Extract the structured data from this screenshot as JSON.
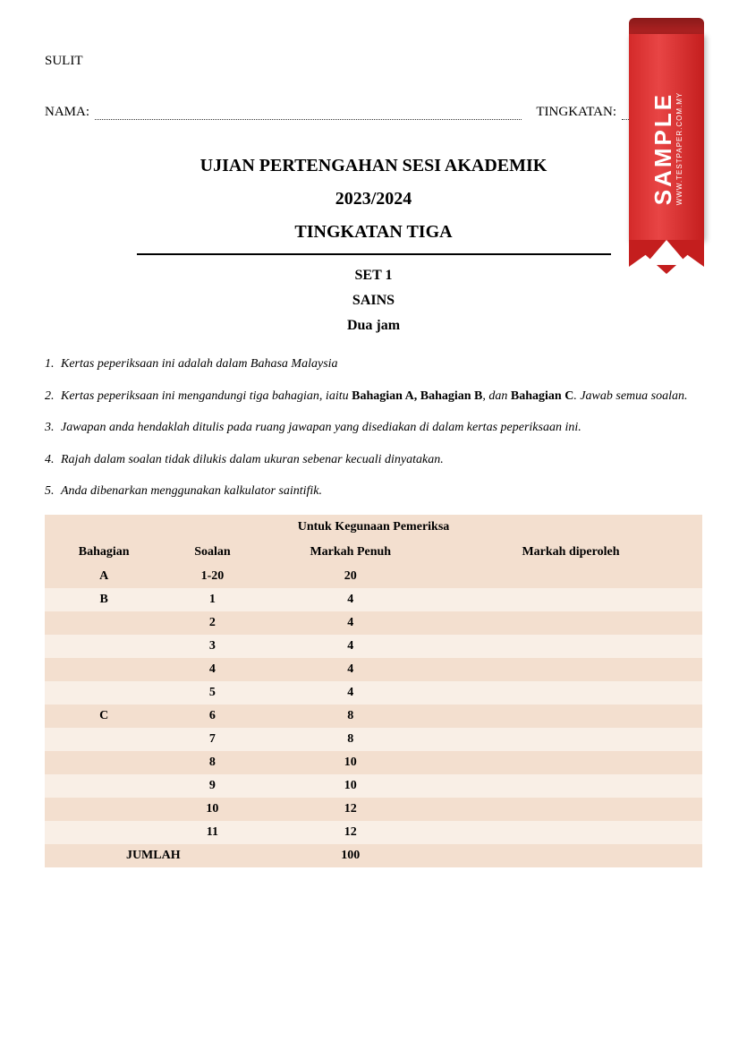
{
  "header": {
    "confidential": "SULIT",
    "name_label": "NAMA:",
    "tingkatan_label": "TINGKATAN:"
  },
  "titles": {
    "line1": "UJIAN PERTENGAHAN SESI AKADEMIK",
    "line2": "2023/2024",
    "line3": "TINGKATAN TIGA",
    "line4": "SET 1",
    "line5": "SAINS",
    "line6": "Dua jam"
  },
  "instructions": {
    "i1_num": "1.",
    "i1_text": "Kertas peperiksaan ini adalah dalam Bahasa Malaysia",
    "i2_num": "2.",
    "i2_pre": "Kertas peperiksaan ini mengandungi tiga bahagian, iaitu ",
    "i2_bold1": "Bahagian A, Bahagian B",
    "i2_mid": ", dan ",
    "i2_bold2": "Bahagian C",
    "i2_post": ". Jawab semua soalan.",
    "i3_num": "3.",
    "i3_text": "Jawapan anda hendaklah ditulis pada ruang jawapan yang disediakan di dalam kertas peperiksaan ini.",
    "i4_num": "4.",
    "i4_text": "Rajah dalam soalan tidak dilukis dalam ukuran sebenar kecuali dinyatakan.",
    "i5_num": "5.",
    "i5_text": "Anda dibenarkan menggunakan kalkulator saintifik."
  },
  "table": {
    "caption": "Untuk Kegunaan Pemeriksa",
    "headers": {
      "bahagian": "Bahagian",
      "soalan": "Soalan",
      "markah_penuh": "Markah Penuh",
      "markah_diperoleh": "Markah diperoleh"
    },
    "colors": {
      "odd_row": "#f3dfcf",
      "even_row": "#f9efe6",
      "header_bg": "#f3dfcf"
    },
    "rows": [
      {
        "bahagian": "A",
        "soalan": "1-20",
        "markah_penuh": "20",
        "row_class": "odd"
      },
      {
        "bahagian": "B",
        "soalan": "1",
        "markah_penuh": "4",
        "row_class": "even"
      },
      {
        "bahagian": "",
        "soalan": "2",
        "markah_penuh": "4",
        "row_class": "odd"
      },
      {
        "bahagian": "",
        "soalan": "3",
        "markah_penuh": "4",
        "row_class": "even"
      },
      {
        "bahagian": "",
        "soalan": "4",
        "markah_penuh": "4",
        "row_class": "odd"
      },
      {
        "bahagian": "",
        "soalan": "5",
        "markah_penuh": "4",
        "row_class": "even"
      },
      {
        "bahagian": "C",
        "soalan": "6",
        "markah_penuh": "8",
        "row_class": "odd"
      },
      {
        "bahagian": "",
        "soalan": "7",
        "markah_penuh": "8",
        "row_class": "even"
      },
      {
        "bahagian": "",
        "soalan": "8",
        "markah_penuh": "10",
        "row_class": "odd"
      },
      {
        "bahagian": "",
        "soalan": "9",
        "markah_penuh": "10",
        "row_class": "even"
      },
      {
        "bahagian": "",
        "soalan": "10",
        "markah_penuh": "12",
        "row_class": "odd"
      },
      {
        "bahagian": "",
        "soalan": "11",
        "markah_penuh": "12",
        "row_class": "even"
      }
    ],
    "total_label": "JUMLAH",
    "total_value": "100",
    "total_row_class": "odd"
  },
  "ribbon": {
    "sample_text": "SAMPLE",
    "url_text": "WWW.TESTPAPER.COM.MY",
    "main_color": "#d42a2a",
    "dark_color": "#8a1a1a"
  }
}
